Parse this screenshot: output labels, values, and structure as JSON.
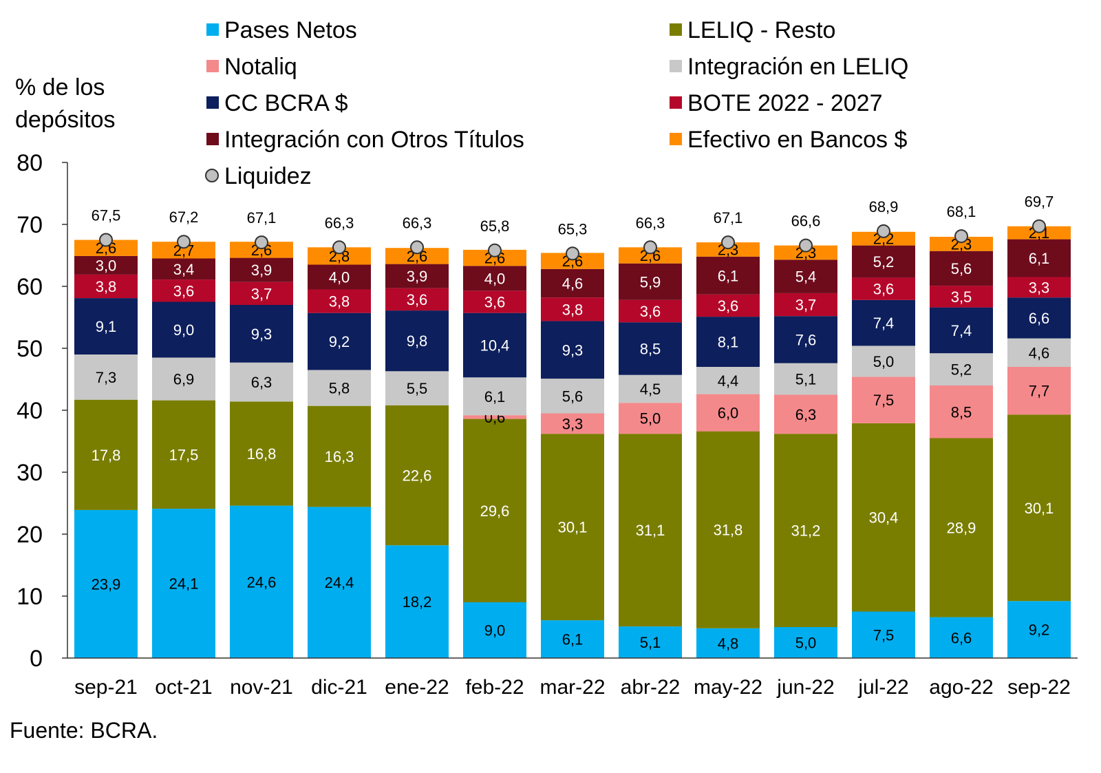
{
  "chart_data": {
    "type": "bar",
    "stacked": true,
    "ylabel_lines": [
      "% de los",
      "depósitos"
    ],
    "ylim": [
      0,
      80
    ],
    "yticks": [
      0,
      10,
      20,
      30,
      40,
      50,
      60,
      70,
      80
    ],
    "categories": [
      "sep-21",
      "oct-21",
      "nov-21",
      "dic-21",
      "ene-22",
      "feb-22",
      "mar-22",
      "abr-22",
      "may-22",
      "jun-22",
      "jul-22",
      "ago-22",
      "sep-22"
    ],
    "series": [
      {
        "name": "Pases Netos",
        "color": "#00AEEF",
        "label_color": "#000000",
        "values": [
          23.9,
          24.1,
          24.6,
          24.4,
          18.2,
          9.0,
          6.1,
          5.1,
          4.8,
          5.0,
          7.5,
          6.6,
          9.2
        ],
        "labels": [
          "23,9",
          "24,1",
          "24,6",
          "24,4",
          "18,2",
          "9,0",
          "6,1",
          "5,1",
          "4,8",
          "5,0",
          "7,5",
          "6,6",
          "9,2"
        ]
      },
      {
        "name": "LELIQ - Resto",
        "color": "#7A7E00",
        "label_color": "#FFFFFF",
        "values": [
          17.8,
          17.5,
          16.8,
          16.3,
          22.6,
          29.6,
          30.1,
          31.1,
          31.8,
          31.2,
          30.4,
          28.9,
          30.1
        ],
        "labels": [
          "17,8",
          "17,5",
          "16,8",
          "16,3",
          "22,6",
          "29,6",
          "30,1",
          "31,1",
          "31,8",
          "31,2",
          "30,4",
          "28,9",
          "30,1"
        ]
      },
      {
        "name": "Notaliq",
        "color": "#F4898B",
        "label_color": "#000000",
        "values": [
          0,
          0,
          0,
          0,
          0,
          0.6,
          3.3,
          5.0,
          6.0,
          6.3,
          7.5,
          8.5,
          7.7
        ],
        "labels": [
          "",
          "",
          "",
          "",
          "",
          "0,6",
          "3,3",
          "5,0",
          "6,0",
          "6,3",
          "7,5",
          "8,5",
          "7,7"
        ]
      },
      {
        "name": "Integración en LELIQ",
        "color": "#C8C8C8",
        "label_color": "#000000",
        "values": [
          7.3,
          6.9,
          6.3,
          5.8,
          5.5,
          6.1,
          5.6,
          4.5,
          4.4,
          5.1,
          5.0,
          5.2,
          4.6
        ],
        "labels": [
          "7,3",
          "6,9",
          "6,3",
          "5,8",
          "5,5",
          "6,1",
          "5,6",
          "4,5",
          "4,4",
          "5,1",
          "5,0",
          "5,2",
          "4,6"
        ]
      },
      {
        "name": "CC BCRA $",
        "color": "#0D1F5C",
        "label_color": "#FFFFFF",
        "values": [
          9.1,
          9.0,
          9.3,
          9.2,
          9.8,
          10.4,
          9.3,
          8.5,
          8.1,
          7.6,
          7.4,
          7.4,
          6.6
        ],
        "labels": [
          "9,1",
          "9,0",
          "9,3",
          "9,2",
          "9,8",
          "10,4",
          "9,3",
          "8,5",
          "8,1",
          "7,6",
          "7,4",
          "7,4",
          "6,6"
        ]
      },
      {
        "name": "BOTE 2022 - 2027",
        "color": "#B5072A",
        "label_color": "#FFFFFF",
        "values": [
          3.8,
          3.6,
          3.7,
          3.8,
          3.6,
          3.6,
          3.8,
          3.6,
          3.6,
          3.7,
          3.6,
          3.5,
          3.3
        ],
        "labels": [
          "3,8",
          "3,6",
          "3,7",
          "3,8",
          "3,6",
          "3,6",
          "3,8",
          "3,6",
          "3,6",
          "3,7",
          "3,6",
          "3,5",
          "3,3"
        ]
      },
      {
        "name": "Integración con Otros Títulos",
        "color": "#6E0C1C",
        "label_color": "#FFFFFF",
        "values": [
          3.0,
          3.4,
          3.9,
          4.0,
          3.9,
          4.0,
          4.6,
          5.9,
          6.1,
          5.4,
          5.2,
          5.6,
          6.1
        ],
        "labels": [
          "3,0",
          "3,4",
          "3,9",
          "4,0",
          "3,9",
          "4,0",
          "4,6",
          "5,9",
          "6,1",
          "5,4",
          "5,2",
          "5,6",
          "6,1"
        ]
      },
      {
        "name": "Efectivo en Bancos $",
        "color": "#FF8C00",
        "label_color": "#000000",
        "values": [
          2.6,
          2.7,
          2.6,
          2.8,
          2.6,
          2.6,
          2.6,
          2.6,
          2.3,
          2.3,
          2.2,
          2.3,
          2.1
        ],
        "labels": [
          "2,6",
          "2,7",
          "2,6",
          "2,8",
          "2,6",
          "2,6",
          "2,6",
          "2,6",
          "2,3",
          "2,3",
          "2,2",
          "2,3",
          "2,1"
        ]
      }
    ],
    "totals": {
      "name": "Liquidez",
      "marker_color": "#C0C0C0",
      "values": [
        67.5,
        67.2,
        67.1,
        66.3,
        66.3,
        65.8,
        65.3,
        66.3,
        67.1,
        66.6,
        68.9,
        68.1,
        69.7
      ],
      "labels": [
        "67,5",
        "67,2",
        "67,1",
        "66,3",
        "66,3",
        "65,8",
        "65,3",
        "66,3",
        "67,1",
        "66,6",
        "68,9",
        "68,1",
        "69,7"
      ]
    },
    "legend_order": [
      {
        "series": 0,
        "col": 0,
        "row": 0
      },
      {
        "series": 1,
        "col": 1,
        "row": 0
      },
      {
        "series": 2,
        "col": 0,
        "row": 1
      },
      {
        "series": 3,
        "col": 1,
        "row": 1
      },
      {
        "series": 4,
        "col": 0,
        "row": 2
      },
      {
        "series": 5,
        "col": 1,
        "row": 2
      },
      {
        "series": 6,
        "col": 0,
        "row": 3
      },
      {
        "series": 7,
        "col": 1,
        "row": 3
      },
      {
        "series": "totals",
        "col": 0,
        "row": 4
      }
    ],
    "legend_placement": "top",
    "grid": false
  },
  "source": "Fuente: BCRA."
}
